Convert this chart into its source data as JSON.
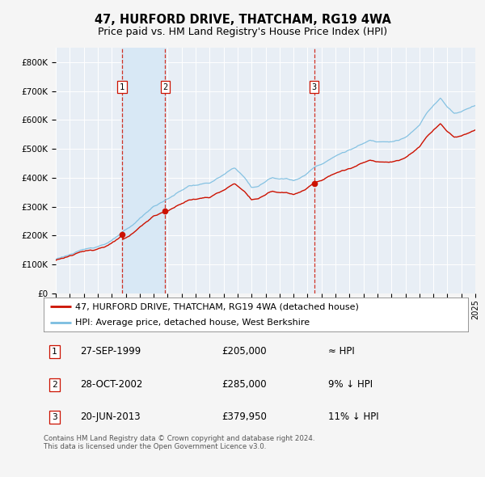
{
  "title": "47, HURFORD DRIVE, THATCHAM, RG19 4WA",
  "subtitle": "Price paid vs. HM Land Registry's House Price Index (HPI)",
  "background_color": "#f5f5f5",
  "plot_bg_color": "#e8eef5",
  "grid_color": "#ffffff",
  "hpi_color": "#7abde0",
  "price_color": "#cc1100",
  "vline_color": "#cc1100",
  "highlight_color": "#d8e8f5",
  "ylim": [
    0,
    850000
  ],
  "yticks": [
    0,
    100000,
    200000,
    300000,
    400000,
    500000,
    600000,
    700000,
    800000
  ],
  "ytick_labels": [
    "£0",
    "£100K",
    "£200K",
    "£300K",
    "£400K",
    "£500K",
    "£600K",
    "£700K",
    "£800K"
  ],
  "x_start_year": 1995,
  "x_end_year": 2025,
  "sales": [
    {
      "year": 1999.74,
      "price": 205000,
      "label": "1"
    },
    {
      "year": 2002.83,
      "price": 285000,
      "label": "2"
    },
    {
      "year": 2013.47,
      "price": 379950,
      "label": "3"
    }
  ],
  "sale_table": [
    {
      "num": "1",
      "date": "27-SEP-1999",
      "price": "£205,000",
      "vs_hpi": "≈ HPI"
    },
    {
      "num": "2",
      "date": "28-OCT-2002",
      "price": "£285,000",
      "vs_hpi": "9% ↓ HPI"
    },
    {
      "num": "3",
      "date": "20-JUN-2013",
      "price": "£379,950",
      "vs_hpi": "11% ↓ HPI"
    }
  ],
  "legend_line1": "47, HURFORD DRIVE, THATCHAM, RG19 4WA (detached house)",
  "legend_line2": "HPI: Average price, detached house, West Berkshire",
  "footer": "Contains HM Land Registry data © Crown copyright and database right 2024.\nThis data is licensed under the Open Government Licence v3.0.",
  "title_fontsize": 10.5,
  "subtitle_fontsize": 9,
  "tick_fontsize": 7.5,
  "legend_fontsize": 8,
  "table_fontsize": 8.5
}
